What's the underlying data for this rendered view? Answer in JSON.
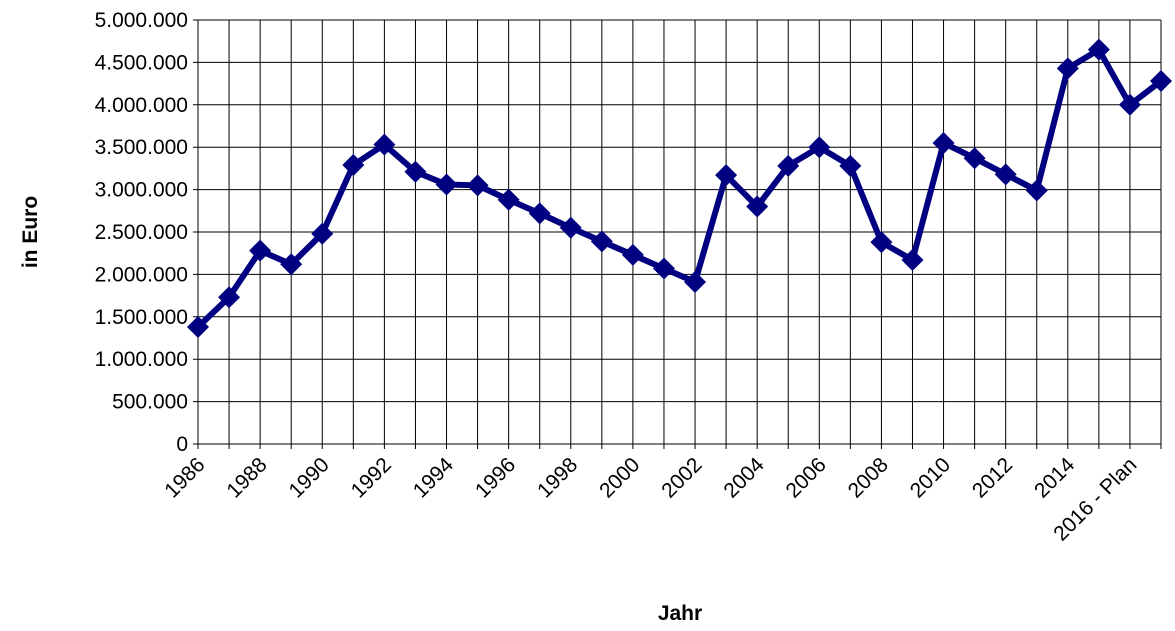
{
  "chart_data": {
    "type": "line",
    "x_label": "Jahr",
    "y_label": "in Euro",
    "categories": [
      "1986",
      null,
      "1988",
      null,
      "1990",
      null,
      "1992",
      null,
      "1994",
      null,
      "1996",
      null,
      "1998",
      null,
      "2000",
      null,
      "2002",
      null,
      "2004",
      null,
      "2006",
      null,
      "2008",
      null,
      "2010",
      null,
      "2012",
      null,
      "2014",
      null,
      "2016 - Plan",
      null
    ],
    "series": [
      {
        "name": "in Euro",
        "color": "#000080",
        "values": [
          1380000,
          1730000,
          2280000,
          2120000,
          2480000,
          3290000,
          3530000,
          3210000,
          3060000,
          3050000,
          2880000,
          2720000,
          2550000,
          2390000,
          2230000,
          2070000,
          1910000,
          3170000,
          2800000,
          3280000,
          3500000,
          3280000,
          2380000,
          2170000,
          3550000,
          3370000,
          3180000,
          2990000,
          4430000,
          4650000,
          4000000,
          4280000
        ]
      }
    ],
    "ylim": [
      0,
      5000000
    ],
    "yticks": [
      0,
      {
        "value": 500000,
        "label": "500.000"
      },
      {
        "value": 1000000,
        "label": "1.000.000"
      },
      {
        "value": 1500000,
        "label": "1.500.000"
      },
      {
        "value": 2000000,
        "label": "2.000.000"
      },
      {
        "value": 2500000,
        "label": "2.500.000"
      },
      {
        "value": 3000000,
        "label": "3.000.000"
      },
      {
        "value": 3500000,
        "label": "3.500.000"
      },
      {
        "value": 4000000,
        "label": "4.000.000"
      },
      {
        "value": 4500000,
        "label": "4.500.000"
      },
      {
        "value": 5000000,
        "label": "5.000.000"
      }
    ],
    "grid": true
  }
}
